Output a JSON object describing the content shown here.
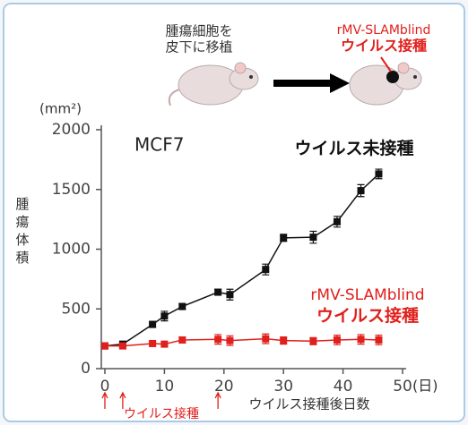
{
  "illustration": {
    "step1": [
      "腫瘍細胞を",
      "皮下に移植"
    ],
    "step2": [
      "rMV-SLAMblind",
      "ウイルス接種"
    ]
  },
  "chart_data": {
    "type": "line",
    "title": "MCF7",
    "y_unit": "(mm²)",
    "y_label": "腫瘍体積",
    "x_label": "ウイルス接種後日数",
    "x_unit": "(日)",
    "x": [
      0,
      3,
      8,
      10,
      13,
      19,
      21,
      27,
      30,
      35,
      39,
      43,
      46
    ],
    "series": [
      {
        "name": "ウイルス未接種",
        "color": "#111111",
        "values": [
          190,
          205,
          370,
          440,
          520,
          640,
          620,
          830,
          1095,
          1100,
          1230,
          1490,
          1630
        ],
        "errors": [
          15,
          15,
          25,
          40,
          25,
          25,
          45,
          45,
          30,
          50,
          45,
          50,
          40
        ]
      },
      {
        "name": "rMV-SLAMblind\nウイルス接種",
        "color": "#e0201c",
        "values": [
          190,
          190,
          210,
          205,
          240,
          245,
          235,
          250,
          235,
          230,
          240,
          245,
          240
        ],
        "errors": [
          15,
          15,
          20,
          20,
          25,
          40,
          40,
          40,
          30,
          30,
          40,
          40,
          40
        ]
      }
    ],
    "xlim": [
      -0.6,
      50.6
    ],
    "xticks": [
      0,
      10,
      20,
      30,
      40,
      50
    ],
    "ylim": [
      0,
      2000
    ],
    "yticks": [
      0,
      500,
      1000,
      1500,
      2000
    ],
    "injection_days": [
      0,
      3,
      19
    ],
    "injection_label": "ウイルス接種",
    "injection_color": "#e0201c"
  }
}
